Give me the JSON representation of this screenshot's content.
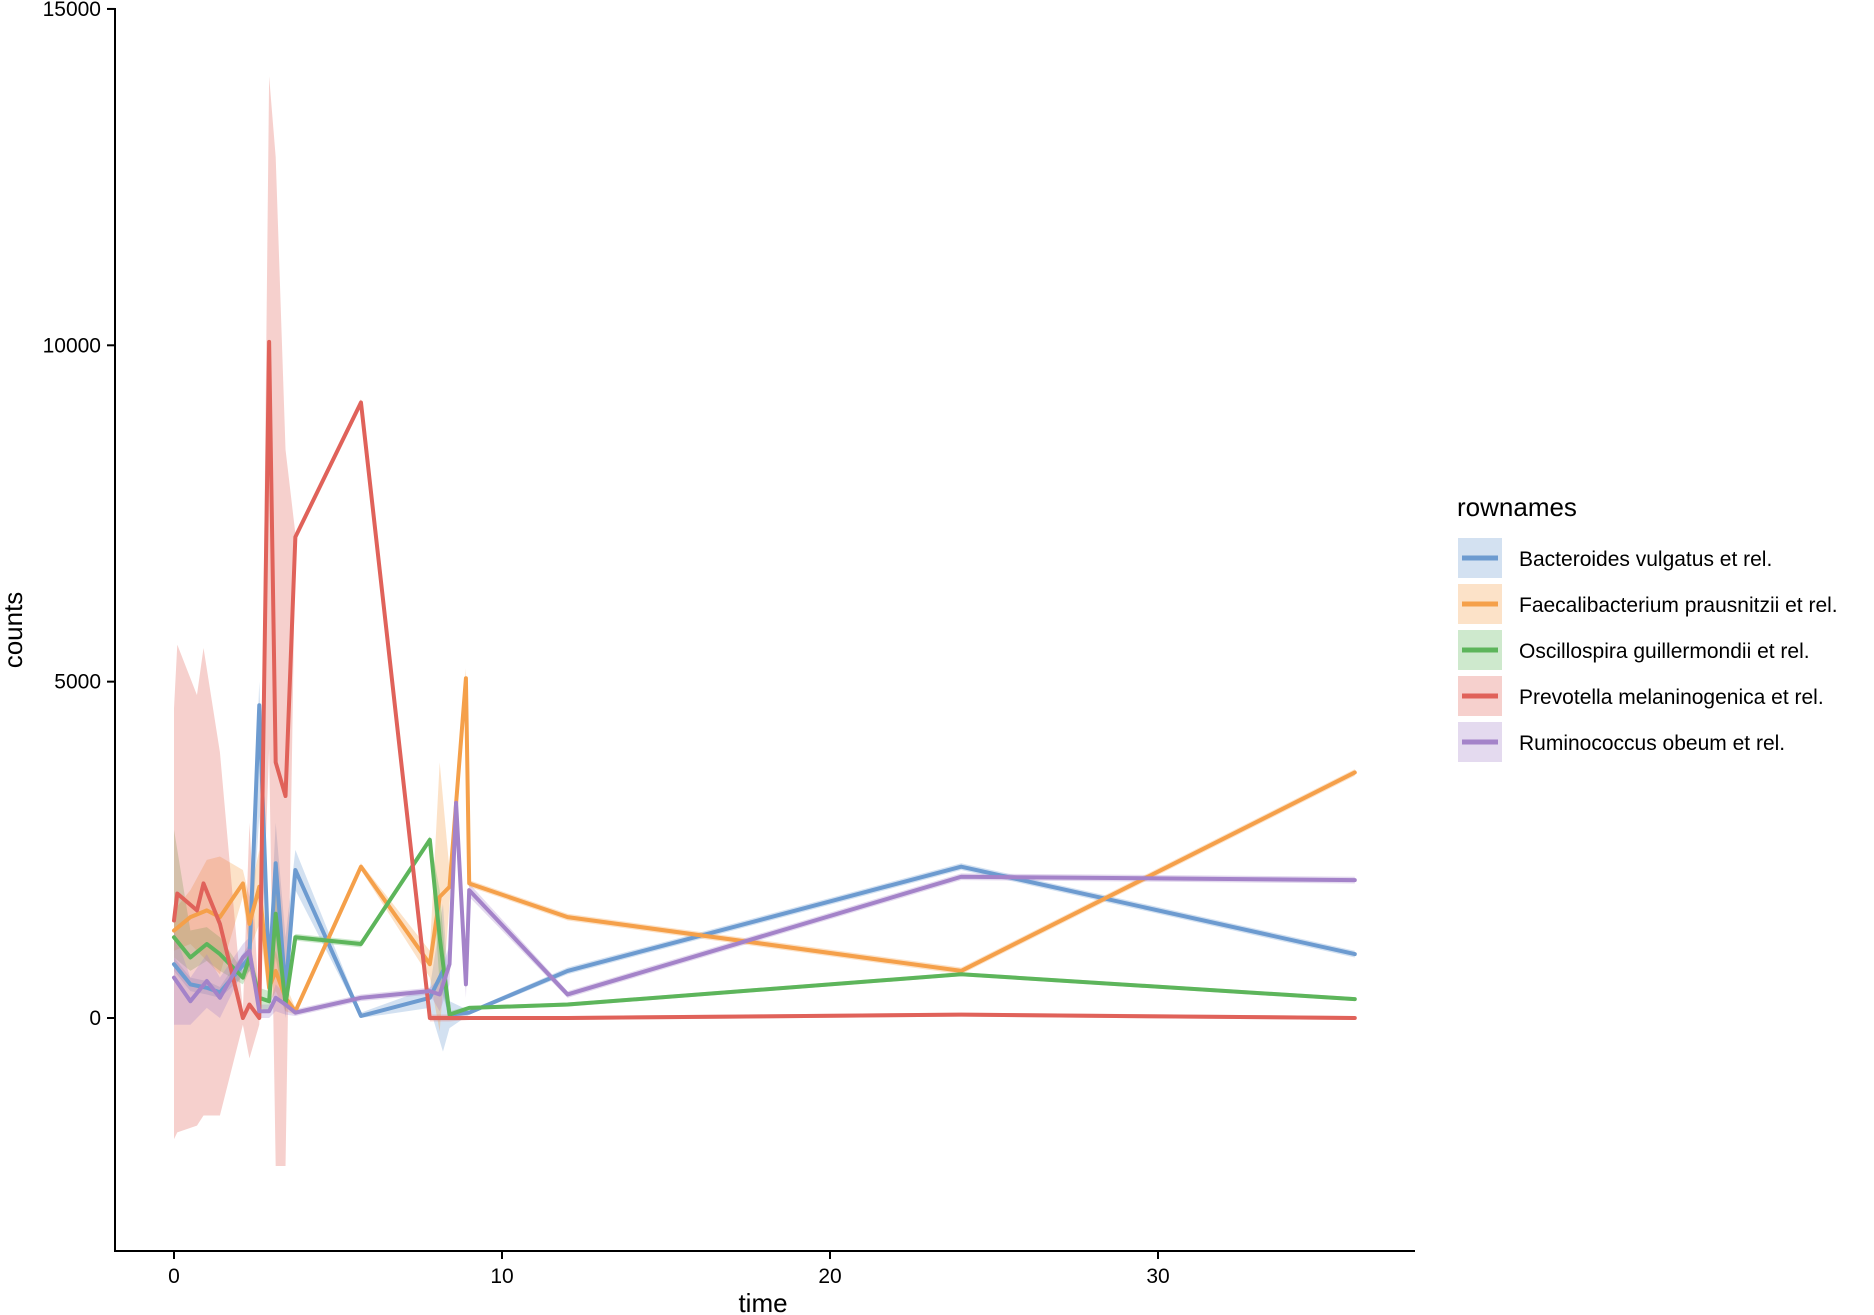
{
  "chart_data": {
    "type": "line",
    "title": "",
    "xlabel": "time",
    "ylabel": "counts",
    "xlim": [
      -1.5,
      37.5
    ],
    "ylim": [
      -3500,
      15000
    ],
    "x_ticks": [
      0,
      10,
      20,
      30
    ],
    "y_ticks": [
      0,
      5000,
      10000,
      15000
    ],
    "grid": false,
    "legend": {
      "title": "rownames",
      "placement": "right"
    },
    "series": [
      {
        "name": "Bacteroides vulgatus et rel.",
        "color": "#6d9bd0",
        "points": [
          [
            0,
            800
          ],
          [
            0.5,
            500
          ],
          [
            1,
            450
          ],
          [
            1.4,
            380
          ],
          [
            2.3,
            900
          ],
          [
            2.6,
            4650
          ],
          [
            2.9,
            600
          ],
          [
            3.1,
            2300
          ],
          [
            3.4,
            400
          ],
          [
            3.7,
            2200
          ],
          [
            5.7,
            30
          ],
          [
            7.8,
            300
          ],
          [
            8.2,
            700
          ],
          [
            8.4,
            50
          ],
          [
            9,
            80
          ],
          [
            12,
            700
          ],
          [
            24,
            2250
          ],
          [
            36,
            950
          ]
        ],
        "band": [
          [
            0,
            700,
            900
          ],
          [
            0.5,
            400,
            600
          ],
          [
            1,
            350,
            550
          ],
          [
            1.4,
            300,
            460
          ],
          [
            2.3,
            700,
            1100
          ],
          [
            2.6,
            3000,
            5000
          ],
          [
            2.9,
            300,
            900
          ],
          [
            3.1,
            1200,
            2900
          ],
          [
            3.4,
            0,
            1200
          ],
          [
            3.7,
            1900,
            2500
          ],
          [
            5.7,
            0,
            80
          ],
          [
            7.8,
            150,
            450
          ],
          [
            8.2,
            -500,
            1700
          ],
          [
            8.4,
            -150,
            250
          ],
          [
            9,
            50,
            110
          ],
          [
            12,
            650,
            750
          ],
          [
            24,
            2200,
            2300
          ],
          [
            36,
            900,
            1000
          ]
        ]
      },
      {
        "name": "Faecalibacterium prausnitzii et rel.",
        "color": "#f5a04a",
        "points": [
          [
            0,
            1300
          ],
          [
            0.5,
            1500
          ],
          [
            1,
            1600
          ],
          [
            1.4,
            1500
          ],
          [
            2.1,
            2000
          ],
          [
            2.3,
            1400
          ],
          [
            2.6,
            1950
          ],
          [
            2.9,
            450
          ],
          [
            3.1,
            700
          ],
          [
            3.4,
            300
          ],
          [
            3.7,
            100
          ],
          [
            5.7,
            2250
          ],
          [
            7.8,
            800
          ],
          [
            8.1,
            1800
          ],
          [
            8.4,
            1950
          ],
          [
            8.9,
            5050
          ],
          [
            9,
            2000
          ],
          [
            12,
            1500
          ],
          [
            24,
            700
          ],
          [
            36,
            3650
          ]
        ],
        "band": [
          [
            0,
            1000,
            1600
          ],
          [
            0.5,
            1100,
            1900
          ],
          [
            1,
            850,
            2350
          ],
          [
            1.4,
            650,
            2400
          ],
          [
            2.1,
            1800,
            2200
          ],
          [
            2.3,
            1000,
            1800
          ],
          [
            2.6,
            1400,
            2500
          ],
          [
            2.9,
            200,
            700
          ],
          [
            3.1,
            400,
            1000
          ],
          [
            3.4,
            100,
            500
          ],
          [
            3.7,
            50,
            150
          ],
          [
            5.7,
            2200,
            2300
          ],
          [
            7.8,
            600,
            1000
          ],
          [
            8.1,
            -200,
            3800
          ],
          [
            8.4,
            1700,
            2200
          ],
          [
            8.9,
            4900,
            5200
          ],
          [
            9,
            1950,
            2050
          ],
          [
            12,
            1450,
            1550
          ],
          [
            24,
            650,
            750
          ],
          [
            36,
            3600,
            3700
          ]
        ]
      },
      {
        "name": "Oscillospira guillermondii et rel.",
        "color": "#5db55b",
        "points": [
          [
            0,
            1200
          ],
          [
            0.5,
            900
          ],
          [
            1,
            1100
          ],
          [
            1.4,
            950
          ],
          [
            2.1,
            600
          ],
          [
            2.3,
            900
          ],
          [
            2.6,
            300
          ],
          [
            2.9,
            250
          ],
          [
            3.1,
            1550
          ],
          [
            3.4,
            200
          ],
          [
            3.7,
            1200
          ],
          [
            5.7,
            1100
          ],
          [
            7.8,
            2650
          ],
          [
            8.1,
            1200
          ],
          [
            8.4,
            50
          ],
          [
            9,
            150
          ],
          [
            12,
            200
          ],
          [
            24,
            650
          ],
          [
            36,
            280
          ]
        ],
        "band": [
          [
            0,
            900,
            2800
          ],
          [
            0.5,
            700,
            1300
          ],
          [
            1,
            850,
            1350
          ],
          [
            1.4,
            700,
            1200
          ],
          [
            2.1,
            500,
            700
          ],
          [
            2.3,
            700,
            1100
          ],
          [
            2.6,
            150,
            450
          ],
          [
            2.9,
            100,
            400
          ],
          [
            3.1,
            900,
            2200
          ],
          [
            3.4,
            100,
            300
          ],
          [
            3.7,
            1150,
            1250
          ],
          [
            5.7,
            1050,
            1150
          ],
          [
            7.8,
            2600,
            2700
          ],
          [
            8.1,
            500,
            1900
          ],
          [
            8.4,
            0,
            100
          ],
          [
            9,
            120,
            180
          ],
          [
            12,
            170,
            230
          ],
          [
            24,
            620,
            680
          ],
          [
            36,
            250,
            310
          ]
        ]
      },
      {
        "name": "Prevotella melaninogenica et rel.",
        "color": "#e0625a",
        "points": [
          [
            0,
            1450
          ],
          [
            0.1,
            1850
          ],
          [
            0.7,
            1600
          ],
          [
            0.9,
            2000
          ],
          [
            1.4,
            1400
          ],
          [
            2.1,
            0
          ],
          [
            2.3,
            200
          ],
          [
            2.6,
            0
          ],
          [
            2.9,
            10050
          ],
          [
            3.1,
            3800
          ],
          [
            3.4,
            3300
          ],
          [
            3.7,
            7150
          ],
          [
            5.7,
            9150
          ],
          [
            7.8,
            0
          ],
          [
            8.4,
            0
          ],
          [
            9,
            0
          ],
          [
            12,
            0
          ],
          [
            24,
            50
          ],
          [
            36,
            0
          ]
        ],
        "band": [
          [
            0,
            -1800,
            4600
          ],
          [
            0.1,
            -1700,
            5550
          ],
          [
            0.7,
            -1600,
            4800
          ],
          [
            0.9,
            -1450,
            5500
          ],
          [
            1.4,
            -1450,
            3950
          ],
          [
            2.1,
            -100,
            100
          ],
          [
            2.3,
            -600,
            2900
          ],
          [
            2.6,
            -100,
            100
          ],
          [
            2.9,
            4000,
            14000
          ],
          [
            3.1,
            -2200,
            12800
          ],
          [
            3.4,
            -2200,
            8450
          ],
          [
            3.7,
            7100,
            7200
          ],
          [
            5.7,
            9100,
            9200
          ],
          [
            7.8,
            -50,
            50
          ],
          [
            8.4,
            -50,
            50
          ],
          [
            9,
            -30,
            30
          ],
          [
            12,
            -30,
            30
          ],
          [
            24,
            20,
            80
          ],
          [
            36,
            -30,
            30
          ]
        ]
      },
      {
        "name": "Ruminococcus obeum et rel.",
        "color": "#a483c9",
        "points": [
          [
            0,
            600
          ],
          [
            0.5,
            250
          ],
          [
            1,
            550
          ],
          [
            1.4,
            300
          ],
          [
            2.1,
            900
          ],
          [
            2.3,
            1000
          ],
          [
            2.6,
            100
          ],
          [
            2.9,
            100
          ],
          [
            3.1,
            300
          ],
          [
            3.4,
            200
          ],
          [
            3.7,
            80
          ],
          [
            5.7,
            300
          ],
          [
            7.8,
            400
          ],
          [
            8.1,
            350
          ],
          [
            8.4,
            800
          ],
          [
            8.6,
            3200
          ],
          [
            8.9,
            500
          ],
          [
            9,
            1900
          ],
          [
            12,
            350
          ],
          [
            24,
            2100
          ],
          [
            36,
            2050
          ]
        ],
        "band": [
          [
            0,
            -100,
            1300
          ],
          [
            0.5,
            -100,
            600
          ],
          [
            1,
            150,
            950
          ],
          [
            1.4,
            0,
            600
          ],
          [
            2.1,
            700,
            1100
          ],
          [
            2.3,
            800,
            1200
          ],
          [
            2.6,
            0,
            200
          ],
          [
            2.9,
            0,
            200
          ],
          [
            3.1,
            100,
            500
          ],
          [
            3.4,
            50,
            350
          ],
          [
            3.7,
            30,
            130
          ],
          [
            5.7,
            250,
            350
          ],
          [
            7.8,
            350,
            450
          ],
          [
            8.1,
            100,
            600
          ],
          [
            8.4,
            500,
            1100
          ],
          [
            8.6,
            3000,
            3400
          ],
          [
            8.9,
            300,
            700
          ],
          [
            9,
            1800,
            2000
          ],
          [
            12,
            300,
            400
          ],
          [
            24,
            2050,
            2150
          ],
          [
            36,
            2000,
            2100
          ]
        ]
      }
    ]
  }
}
